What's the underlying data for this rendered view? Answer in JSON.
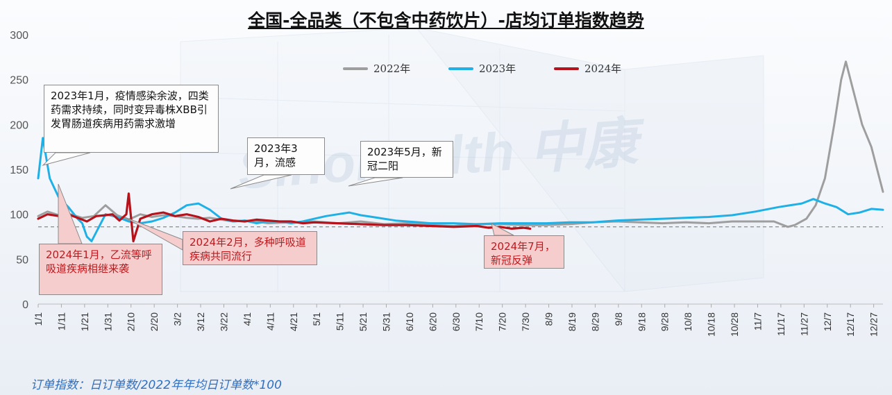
{
  "title": "全国-全品类（不包含中药饮片）-店均订单指数趋势",
  "footnote": "订单指数：日订单数/2022年年均日订单数*100",
  "watermark": "Sinohealth 中康",
  "colors": {
    "s2022": "#9e9e9e",
    "s2023": "#1fb0e6",
    "s2024": "#b5121b",
    "ref": "#888888"
  },
  "legend": [
    "2022年",
    "2023年",
    "2024年"
  ],
  "annotations": {
    "a2023_jan": "2023年1月，疫情感染余波，四类药需求持续，同时变异毒株XBB引发胃肠道疾病用药需求激增",
    "a2023_mar": "2023年3月，流感",
    "a2023_may": "2023年5月，新冠二阳",
    "a2024_jan": "2024年1月，乙流等呼吸道疾病相继来袭",
    "a2024_feb": "2024年2月，多种呼吸道疾病共同流行",
    "a2024_jul": "2024年7月，新冠反弹"
  },
  "chart_data": {
    "type": "line",
    "title": "全国-全品类（不包含中药饮片）-店均订单指数趋势",
    "ylim": [
      0,
      300
    ],
    "yticks": [
      0,
      50,
      100,
      150,
      200,
      250,
      300
    ],
    "xlabels": [
      "1/1",
      "1/11",
      "1/21",
      "1/31",
      "2/10",
      "2/20",
      "3/2",
      "3/12",
      "3/22",
      "4/1",
      "4/11",
      "4/21",
      "5/1",
      "5/11",
      "5/21",
      "5/31",
      "6/10",
      "6/20",
      "6/30",
      "7/10",
      "7/20",
      "7/30",
      "8/9",
      "8/19",
      "8/29",
      "9/8",
      "9/18",
      "9/28",
      "10/8",
      "10/18",
      "10/28",
      "11/7",
      "11/17",
      "11/27",
      "12/7",
      "12/17",
      "12/27"
    ],
    "x_unit": "day of year (1 = Jan 1)",
    "reference_line": 86,
    "series": [
      {
        "name": "2022年",
        "points": [
          [
            1,
            98
          ],
          [
            5,
            103
          ],
          [
            10,
            99
          ],
          [
            15,
            100
          ],
          [
            20,
            96
          ],
          [
            25,
            98
          ],
          [
            30,
            110
          ],
          [
            35,
            99
          ],
          [
            40,
            94
          ],
          [
            45,
            100
          ],
          [
            50,
            97
          ],
          [
            55,
            99
          ],
          [
            60,
            98
          ],
          [
            65,
            96
          ],
          [
            70,
            95
          ],
          [
            75,
            96
          ],
          [
            80,
            94
          ],
          [
            85,
            92
          ],
          [
            90,
            93
          ],
          [
            95,
            92
          ],
          [
            100,
            90
          ],
          [
            110,
            91
          ],
          [
            120,
            92
          ],
          [
            130,
            90
          ],
          [
            140,
            92
          ],
          [
            150,
            89
          ],
          [
            160,
            90
          ],
          [
            170,
            88
          ],
          [
            180,
            87
          ],
          [
            190,
            89
          ],
          [
            200,
            89
          ],
          [
            210,
            88
          ],
          [
            220,
            88
          ],
          [
            230,
            89
          ],
          [
            240,
            91
          ],
          [
            250,
            92
          ],
          [
            260,
            91
          ],
          [
            270,
            90
          ],
          [
            280,
            91
          ],
          [
            290,
            90
          ],
          [
            300,
            92
          ],
          [
            310,
            92
          ],
          [
            318,
            92
          ],
          [
            324,
            86
          ],
          [
            327,
            88
          ],
          [
            332,
            95
          ],
          [
            336,
            110
          ],
          [
            340,
            140
          ],
          [
            344,
            200
          ],
          [
            347,
            250
          ],
          [
            349,
            270
          ],
          [
            352,
            240
          ],
          [
            356,
            200
          ],
          [
            360,
            175
          ],
          [
            363,
            145
          ],
          [
            365,
            125
          ]
        ]
      },
      {
        "name": "2023年",
        "points": [
          [
            1,
            140
          ],
          [
            3,
            185
          ],
          [
            6,
            140
          ],
          [
            10,
            118
          ],
          [
            14,
            108
          ],
          [
            18,
            95
          ],
          [
            20,
            90
          ],
          [
            22,
            75
          ],
          [
            24,
            70
          ],
          [
            26,
            80
          ],
          [
            28,
            90
          ],
          [
            30,
            100
          ],
          [
            35,
            97
          ],
          [
            40,
            92
          ],
          [
            45,
            90
          ],
          [
            50,
            92
          ],
          [
            55,
            96
          ],
          [
            60,
            102
          ],
          [
            65,
            110
          ],
          [
            70,
            112
          ],
          [
            75,
            105
          ],
          [
            80,
            95
          ],
          [
            85,
            92
          ],
          [
            90,
            93
          ],
          [
            95,
            90
          ],
          [
            100,
            92
          ],
          [
            105,
            92
          ],
          [
            110,
            90
          ],
          [
            115,
            92
          ],
          [
            120,
            95
          ],
          [
            125,
            98
          ],
          [
            130,
            100
          ],
          [
            135,
            102
          ],
          [
            140,
            99
          ],
          [
            145,
            97
          ],
          [
            150,
            95
          ],
          [
            155,
            93
          ],
          [
            160,
            92
          ],
          [
            165,
            91
          ],
          [
            170,
            90
          ],
          [
            180,
            90
          ],
          [
            190,
            89
          ],
          [
            200,
            90
          ],
          [
            210,
            90
          ],
          [
            220,
            90
          ],
          [
            230,
            91
          ],
          [
            240,
            91
          ],
          [
            250,
            93
          ],
          [
            260,
            94
          ],
          [
            270,
            95
          ],
          [
            280,
            96
          ],
          [
            290,
            97
          ],
          [
            300,
            99
          ],
          [
            310,
            103
          ],
          [
            320,
            108
          ],
          [
            330,
            112
          ],
          [
            335,
            117
          ],
          [
            340,
            112
          ],
          [
            345,
            108
          ],
          [
            350,
            100
          ],
          [
            355,
            102
          ],
          [
            360,
            106
          ],
          [
            365,
            105
          ]
        ]
      },
      {
        "name": "2024年",
        "points": [
          [
            1,
            95
          ],
          [
            5,
            100
          ],
          [
            10,
            98
          ],
          [
            14,
            100
          ],
          [
            18,
            96
          ],
          [
            22,
            92
          ],
          [
            26,
            98
          ],
          [
            30,
            99
          ],
          [
            33,
            100
          ],
          [
            36,
            93
          ],
          [
            39,
            100
          ],
          [
            40,
            123
          ],
          [
            42,
            70
          ],
          [
            45,
            95
          ],
          [
            50,
            100
          ],
          [
            55,
            102
          ],
          [
            60,
            98
          ],
          [
            65,
            100
          ],
          [
            70,
            97
          ],
          [
            75,
            92
          ],
          [
            80,
            95
          ],
          [
            85,
            93
          ],
          [
            90,
            92
          ],
          [
            95,
            94
          ],
          [
            100,
            93
          ],
          [
            105,
            92
          ],
          [
            110,
            92
          ],
          [
            115,
            90
          ],
          [
            120,
            91
          ],
          [
            130,
            90
          ],
          [
            140,
            89
          ],
          [
            150,
            88
          ],
          [
            160,
            88
          ],
          [
            170,
            87
          ],
          [
            180,
            86
          ],
          [
            190,
            87
          ],
          [
            195,
            85
          ],
          [
            200,
            86
          ],
          [
            205,
            84
          ],
          [
            210,
            85
          ],
          [
            213,
            84
          ]
        ]
      }
    ]
  }
}
